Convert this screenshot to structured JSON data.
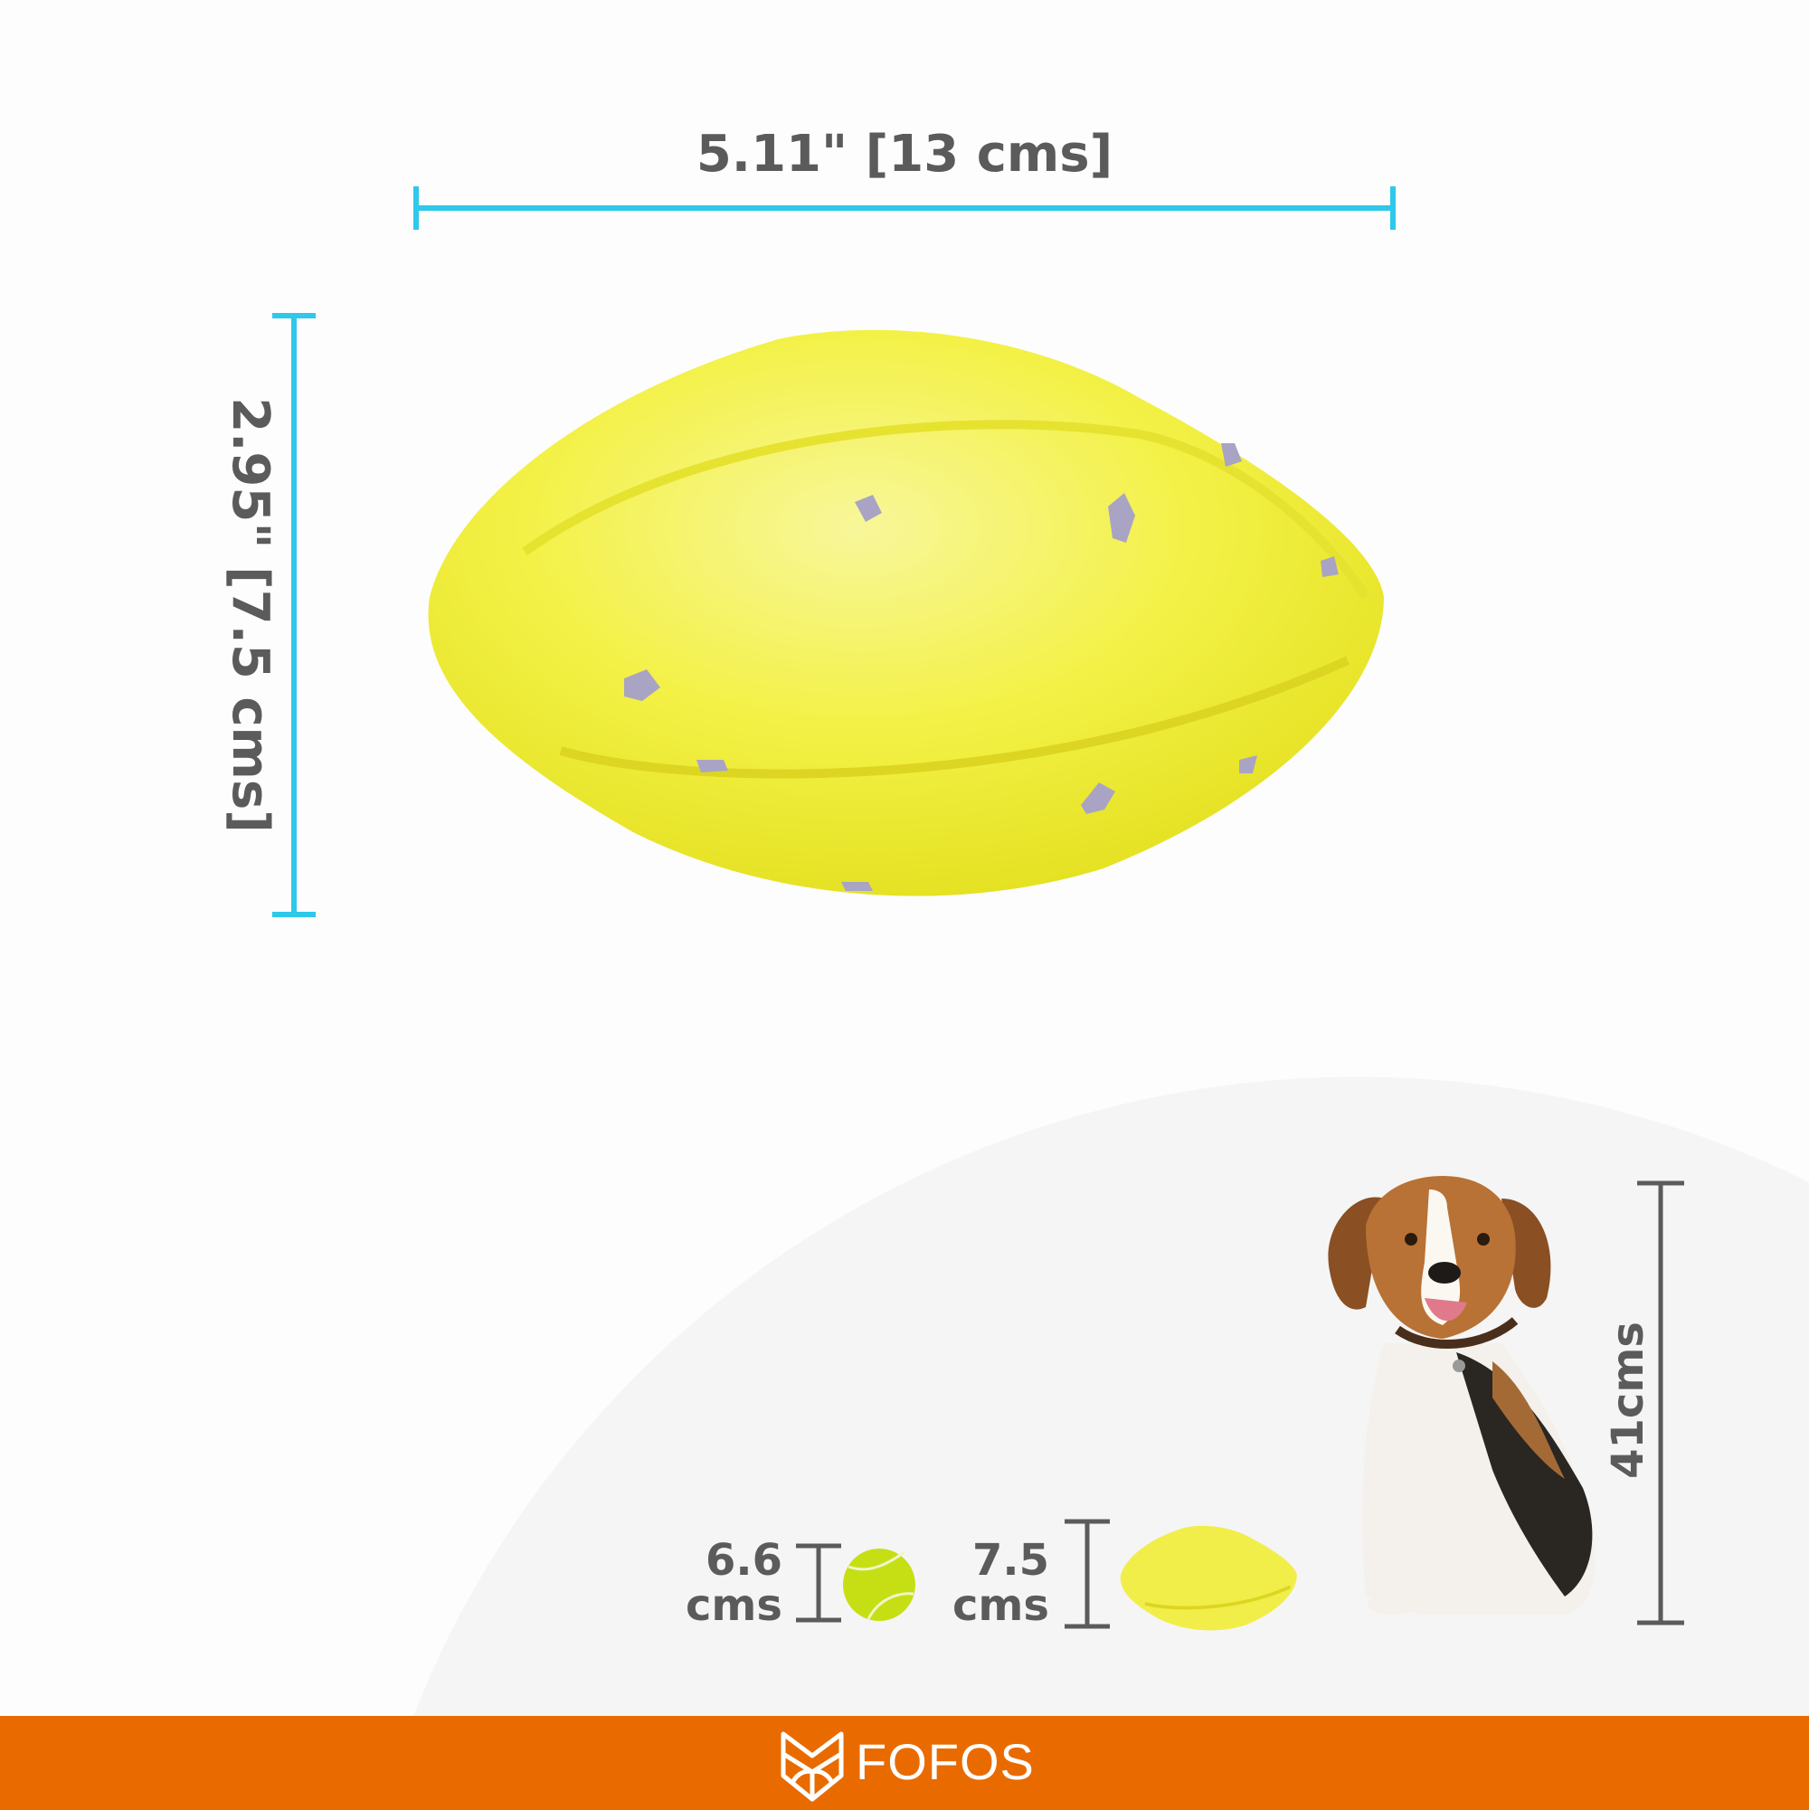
{
  "dimensions": {
    "width_label": "5.11\" [13 cms]",
    "height_label": "2.95\" [7.5 cms]"
  },
  "comparison": {
    "tennis_ball": {
      "value": "6.6",
      "unit": "cms"
    },
    "toy": {
      "value": "7.5",
      "unit": "cms"
    },
    "dog": {
      "label": "41cms"
    }
  },
  "brand": {
    "name": "FOFOS"
  },
  "colors": {
    "dimension_line": "#2ec8ea",
    "text": "#5b5b5b",
    "footer": "#e96b00",
    "toy_yellow": "#f2f03a"
  }
}
